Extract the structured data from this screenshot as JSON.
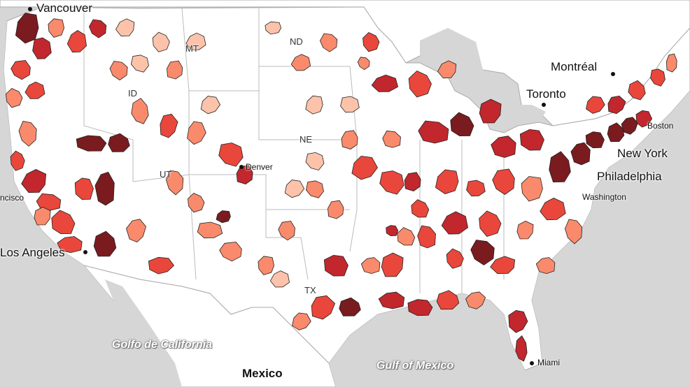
{
  "map": {
    "palette": [
      "#fdeee8",
      "#fcc3aa",
      "#fa8a6c",
      "#e9473b",
      "#c1272d",
      "#7a1b1f"
    ],
    "background_color": "#d6d6d6",
    "land_color": "#ffffff",
    "cities": {
      "vancouver": "Vancouver",
      "montreal": "Montréal",
      "toronto": "Toronto",
      "boston": "Boston",
      "new_york": "New York",
      "philadelphia": "Philadelphia",
      "washington": "Washington",
      "denver": "Denver",
      "san_francisco": "ncisco",
      "los_angeles": "Los Angeles",
      "miami": "Miami"
    },
    "states": {
      "mt": "MT",
      "nd": "ND",
      "id": "ID",
      "ne": "NE",
      "tx": "TX",
      "ut": "UT"
    },
    "water": {
      "gulf_california": "Golfo de California",
      "gulf_mexico": "Gulf of Mexico"
    },
    "countries": {
      "mexico": "Mexico"
    }
  }
}
